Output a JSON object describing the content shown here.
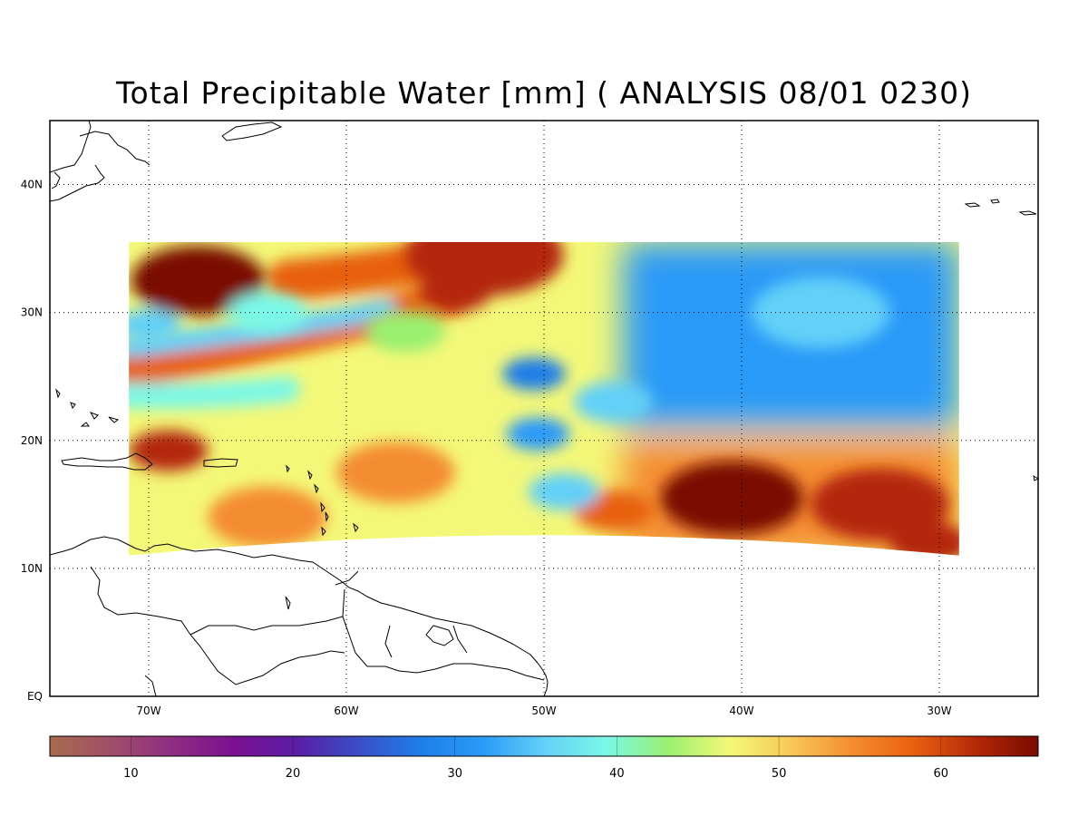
{
  "title": "Total Precipitable Water [mm]  ( ANALYSIS 08/01 0230)",
  "map": {
    "lon_range": [
      -75,
      -25
    ],
    "lat_range": [
      0,
      45
    ],
    "data_extent": {
      "lon": [
        -71,
        -29
      ],
      "lat": [
        11,
        35.5
      ]
    },
    "x_ticks": [
      {
        "value": -70,
        "label": "70W"
      },
      {
        "value": -60,
        "label": "60W"
      },
      {
        "value": -50,
        "label": "50W"
      },
      {
        "value": -40,
        "label": "40W"
      },
      {
        "value": -30,
        "label": "30W"
      }
    ],
    "y_ticks": [
      {
        "value": 0,
        "label": "EQ"
      },
      {
        "value": 10,
        "label": "10N"
      },
      {
        "value": 20,
        "label": "20N"
      },
      {
        "value": 30,
        "label": "30N"
      },
      {
        "value": 40,
        "label": "40N"
      }
    ],
    "grid": "dotted"
  },
  "colorbar": {
    "min": 5,
    "max": 66,
    "tick_labels": [
      {
        "value": 10,
        "label": "10"
      },
      {
        "value": 20,
        "label": "20"
      },
      {
        "value": 30,
        "label": "30"
      },
      {
        "value": 40,
        "label": "40"
      },
      {
        "value": 50,
        "label": "50"
      },
      {
        "value": 60,
        "label": "60"
      }
    ],
    "colors": [
      "#a86a4e",
      "#a04f6a",
      "#8f2c82",
      "#7a1190",
      "#5a1ea6",
      "#3a4ec6",
      "#1e7ee8",
      "#2a9af8",
      "#62d0f8",
      "#7af8e8",
      "#9af070",
      "#f4f878",
      "#f8c858",
      "#f48c30",
      "#e86010",
      "#b42808",
      "#7a0a00"
    ]
  },
  "fields": {
    "blobs": [
      {
        "lon": -67.5,
        "lat": 32.5,
        "r": 3.4,
        "v": 66
      },
      {
        "lon": -53,
        "lat": 34.5,
        "r": 4,
        "v": 64
      },
      {
        "lon": -54.5,
        "lat": 31.5,
        "r": 1.8,
        "v": 62
      },
      {
        "lon": -40.5,
        "lat": 15.5,
        "r": 3.6,
        "v": 65
      },
      {
        "lon": -33,
        "lat": 15,
        "r": 3.5,
        "v": 62
      },
      {
        "lon": -30.5,
        "lat": 12,
        "r": 2,
        "v": 62
      },
      {
        "lon": -69,
        "lat": 19.2,
        "r": 2,
        "v": 64
      },
      {
        "lon": -46.5,
        "lat": 14.5,
        "r": 2,
        "v": 57
      },
      {
        "lon": -64,
        "lat": 14,
        "r": 3,
        "v": 56
      },
      {
        "lon": -57.5,
        "lat": 17.5,
        "r": 3,
        "v": 53
      },
      {
        "lon": -50.5,
        "lat": 25.2,
        "r": 1.6,
        "v": 28
      },
      {
        "lon": -50.3,
        "lat": 20.5,
        "r": 1.6,
        "v": 32
      },
      {
        "lon": -49,
        "lat": 16,
        "r": 1.8,
        "v": 36
      },
      {
        "lon": -36,
        "lat": 30,
        "r": 3.5,
        "v": 36
      },
      {
        "lon": -46.5,
        "lat": 23,
        "r": 2,
        "v": 37
      },
      {
        "lon": -70,
        "lat": 29,
        "r": 1.6,
        "v": 36
      },
      {
        "lon": -64,
        "lat": 30,
        "r": 2,
        "v": 38
      },
      {
        "lon": -57,
        "lat": 28.5,
        "r": 2,
        "v": 44
      }
    ],
    "bands": [
      {
        "lon0": -71,
        "lat0": 25.5,
        "lon1": -55,
        "lat1": 31,
        "w": 1.4,
        "v": 60
      },
      {
        "lon0": -71,
        "lat0": 27.3,
        "lon1": -58,
        "lat1": 30.2,
        "w": 0.8,
        "v": 36
      },
      {
        "lon0": -63,
        "lat0": 32.5,
        "lon1": -51,
        "lat1": 35.5,
        "w": 1.6,
        "v": 58
      },
      {
        "lon0": -71,
        "lat0": 23.5,
        "lon1": -63,
        "lat1": 24,
        "w": 1,
        "v": 40
      }
    ],
    "zones": [
      {
        "lon_min": -46,
        "lat_min": 21,
        "v": 31
      },
      {
        "lon_min": -46,
        "lat_max": 20,
        "v": 56
      }
    ]
  }
}
